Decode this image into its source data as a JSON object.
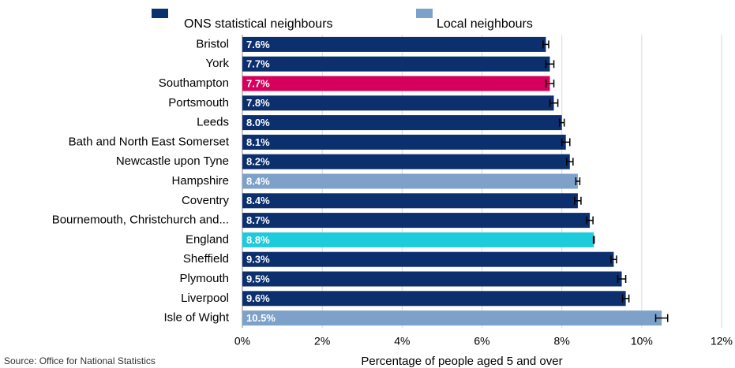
{
  "chart_data": {
    "type": "barh",
    "legend_items": [
      {
        "name": "ONS statistical neighbours",
        "color": "#0c2f6e"
      },
      {
        "name": "Local neighbours",
        "color": "#7ea1c9"
      }
    ],
    "categories": [
      "Bristol",
      "York",
      "Southampton",
      "Portsmouth",
      "Leeds",
      "Bath and North East Somerset",
      "Newcastle upon Tyne",
      "Hampshire",
      "Coventry",
      "Bournemouth, Christchurch and...",
      "England",
      "Sheffield",
      "Plymouth",
      "Liverpool",
      "Isle of Wight"
    ],
    "values": [
      7.6,
      7.7,
      7.7,
      7.8,
      8.0,
      8.1,
      8.2,
      8.4,
      8.4,
      8.7,
      8.8,
      9.3,
      9.5,
      9.6,
      10.5
    ],
    "value_labels": [
      "7.6%",
      "7.7%",
      "7.7%",
      "7.8%",
      "8.0%",
      "8.1%",
      "8.2%",
      "8.4%",
      "8.4%",
      "8.7%",
      "8.8%",
      "9.3%",
      "9.5%",
      "9.6%",
      "10.5%"
    ],
    "errors": [
      0.07,
      0.1,
      0.1,
      0.1,
      0.06,
      0.1,
      0.08,
      0.05,
      0.08,
      0.08,
      0.01,
      0.07,
      0.1,
      0.08,
      0.15
    ],
    "colors": [
      "#0c2f6e",
      "#0c2f6e",
      "#d6005c",
      "#0c2f6e",
      "#0c2f6e",
      "#0c2f6e",
      "#0c2f6e",
      "#7ea1c9",
      "#0c2f6e",
      "#0c2f6e",
      "#1ecbdc",
      "#0c2f6e",
      "#0c2f6e",
      "#0c2f6e",
      "#7ea1c9"
    ],
    "xlim": [
      0,
      12
    ],
    "xticks": [
      {
        "value": 0,
        "label": "0%"
      },
      {
        "value": 2,
        "label": "2%"
      },
      {
        "value": 4,
        "label": "4%"
      },
      {
        "value": 6,
        "label": "6%"
      },
      {
        "value": 8,
        "label": "8%"
      },
      {
        "value": 10,
        "label": "10%"
      },
      {
        "value": 12,
        "label": "12%"
      }
    ],
    "grid": true,
    "x_label": "Percentage of people aged 5 and over",
    "source": "Source: Office for National Statistics"
  }
}
